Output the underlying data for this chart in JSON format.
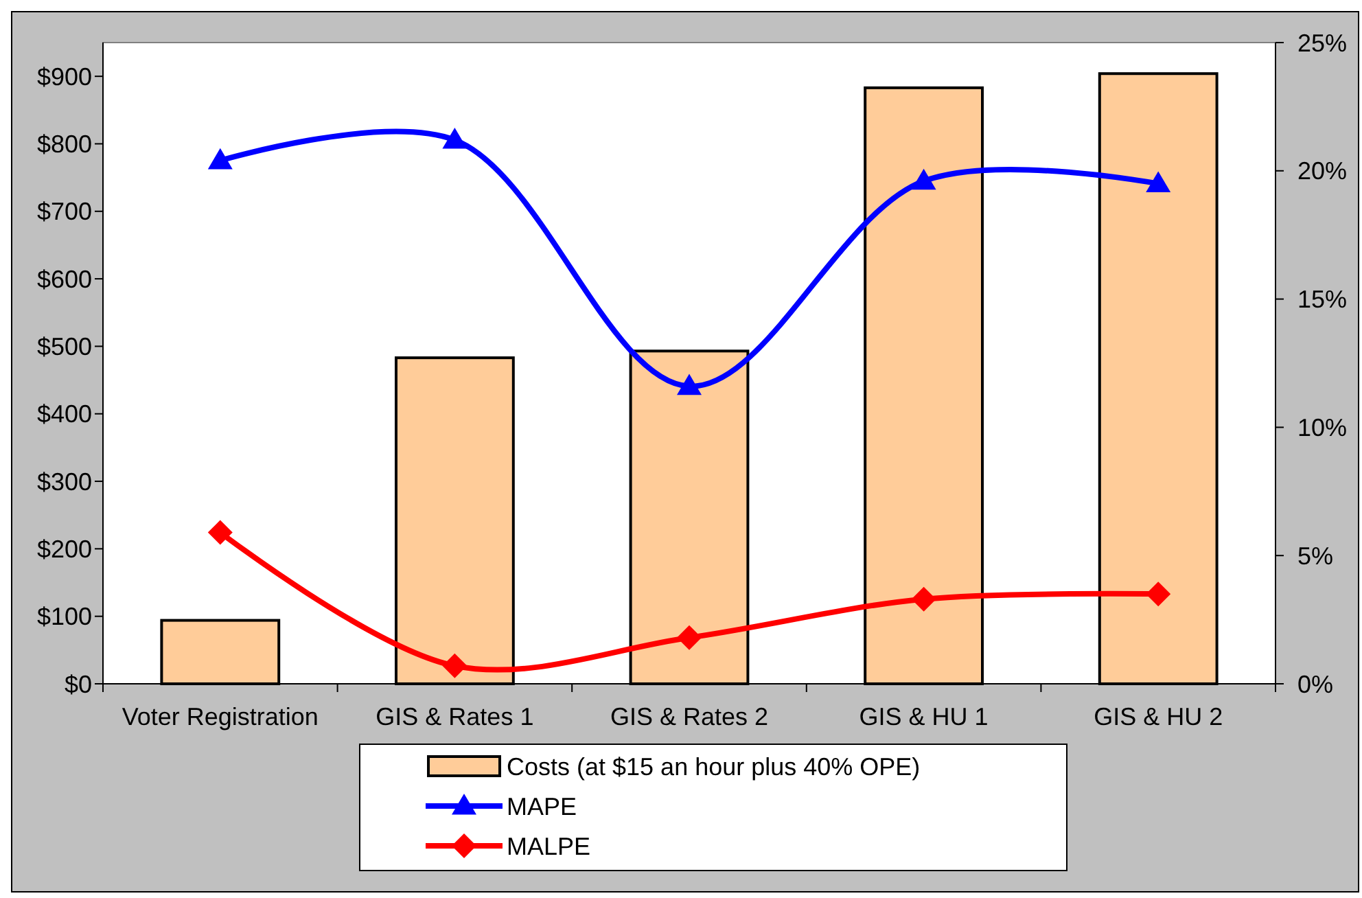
{
  "chart_data": {
    "type": "bar",
    "categories": [
      "Voter Registration",
      "GIS & Rates 1",
      "GIS & Rates 2",
      "GIS & HU 1",
      "GIS & HU 2"
    ],
    "series": [
      {
        "name": "Costs (at $15 an hour plus 40% OPE)",
        "color": "#ffcc99",
        "values": [
          94,
          483,
          493,
          883,
          904
        ]
      },
      {
        "name": "MAPE",
        "type": "line",
        "axis": "y2",
        "color": "#0000ff",
        "marker": "triangle",
        "values": [
          20.4,
          21.2,
          11.6,
          19.6,
          19.5
        ]
      },
      {
        "name": "MALPE",
        "type": "line",
        "axis": "y2",
        "color": "#ff0000",
        "marker": "diamond",
        "values": [
          5.9,
          0.7,
          1.8,
          3.3,
          3.5
        ]
      }
    ],
    "ylim": [
      0,
      950
    ],
    "yticks": [
      {
        "value": 0,
        "label": "$0"
      },
      {
        "value": 100,
        "label": "$100"
      },
      {
        "value": 200,
        "label": "$200"
      },
      {
        "value": 300,
        "label": "$300"
      },
      {
        "value": 400,
        "label": "$400"
      },
      {
        "value": 500,
        "label": "$500"
      },
      {
        "value": 600,
        "label": "$600"
      },
      {
        "value": 700,
        "label": "$700"
      },
      {
        "value": 800,
        "label": "$800"
      },
      {
        "value": 900,
        "label": "$900"
      }
    ],
    "y2lim": [
      0,
      25
    ],
    "y2ticks": [
      {
        "value": 0,
        "label": "0%"
      },
      {
        "value": 5,
        "label": "5%"
      },
      {
        "value": 10,
        "label": "10%"
      },
      {
        "value": 15,
        "label": "15%"
      },
      {
        "value": 20,
        "label": "20%"
      },
      {
        "value": 25,
        "label": "25%"
      }
    ],
    "grid": false,
    "legend": "bottom"
  }
}
